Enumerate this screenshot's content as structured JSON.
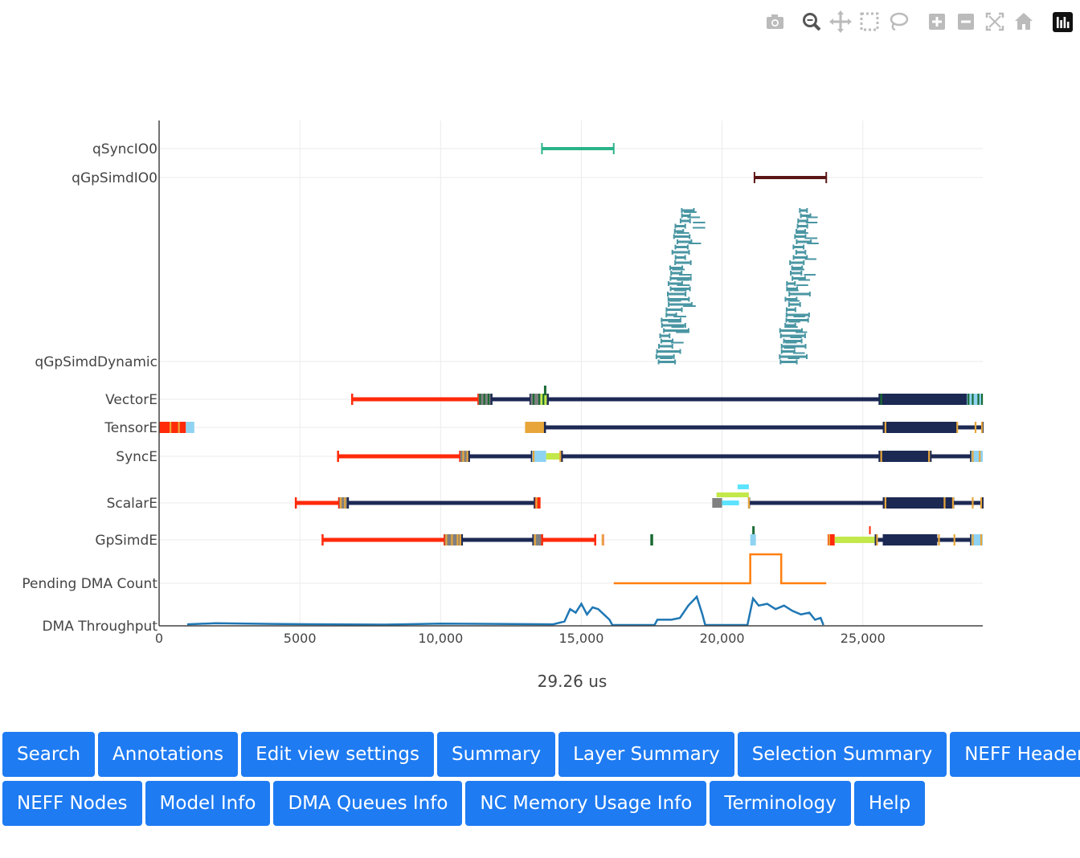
{
  "toolbar": {
    "buttons": [
      {
        "name": "camera-icon"
      },
      {
        "name": "zoom-icon"
      },
      {
        "name": "pan-icon"
      },
      {
        "name": "box-select-icon"
      },
      {
        "name": "lasso-select-icon"
      },
      {
        "name": "zoom-in-icon"
      },
      {
        "name": "zoom-out-icon"
      },
      {
        "name": "autoscale-icon"
      },
      {
        "name": "reset-axes-icon"
      },
      {
        "name": "plotly-logo-icon"
      }
    ]
  },
  "chart_data": {
    "type": "timeline",
    "title": "",
    "xlabel": "29.26 us",
    "xlim": [
      0,
      29260
    ],
    "xticks": [
      0,
      5000,
      10000,
      15000,
      20000,
      25000
    ],
    "xtick_labels": [
      "0",
      "5000",
      "10,000",
      "15,000",
      "20,000",
      "25,000"
    ],
    "rows": [
      "qSyncIO0",
      "qGpSimdIO0",
      "qGpSimdDynamic",
      "VectorE",
      "TensorE",
      "SyncE",
      "ScalarE",
      "GpSimdE",
      "Pending DMA Count",
      "DMA Throughput"
    ],
    "colors": {
      "teal": "#2bb38a",
      "maroon": "#5c1515",
      "dyn": "#4a96a3",
      "red": "#ff2a0a",
      "navy": "#1c2953",
      "lime": "#c3e84a",
      "cyan": "#5ce3ff",
      "lightblue": "#8fd3f2",
      "green": "#1a6b34",
      "orange": "#ff7f0e",
      "blue": "#1f77b4",
      "grey": "#808080",
      "gold": "#e8a63a"
    },
    "intervals": [
      {
        "row": "qSyncIO0",
        "start": 13600,
        "end": 16150,
        "color": "teal",
        "style": "err"
      },
      {
        "row": "qGpSimdIO0",
        "start": 21150,
        "end": 23700,
        "color": "maroon",
        "style": "err"
      },
      {
        "row": "VectorE",
        "start": 6850,
        "end": 11350,
        "color": "red"
      },
      {
        "row": "VectorE",
        "start": 11350,
        "end": 11800,
        "color": "grey",
        "w": 14
      },
      {
        "row": "VectorE",
        "start": 11800,
        "end": 13200,
        "color": "navy"
      },
      {
        "row": "VectorE",
        "start": 13200,
        "end": 13550,
        "color": "grey",
        "w": 14
      },
      {
        "row": "VectorE",
        "start": 13550,
        "end": 13800,
        "color": "lime",
        "w": 14
      },
      {
        "row": "VectorE",
        "start": 13800,
        "end": 25600,
        "color": "navy"
      },
      {
        "row": "VectorE",
        "start": 25600,
        "end": 28700,
        "color": "navy",
        "w": 14
      },
      {
        "row": "VectorE",
        "start": 28700,
        "end": 29260,
        "color": "lightblue",
        "w": 14
      },
      {
        "row": "TensorE",
        "start": 0,
        "end": 950,
        "color": "red",
        "w": 14
      },
      {
        "row": "TensorE",
        "start": 950,
        "end": 1250,
        "color": "lightblue",
        "w": 14
      },
      {
        "row": "TensorE",
        "start": 13000,
        "end": 13700,
        "color": "gold",
        "w": 14
      },
      {
        "row": "TensorE",
        "start": 13700,
        "end": 25750,
        "color": "navy"
      },
      {
        "row": "TensorE",
        "start": 25750,
        "end": 28300,
        "color": "navy",
        "w": 14
      },
      {
        "row": "TensorE",
        "start": 28300,
        "end": 29260,
        "color": "navy"
      },
      {
        "row": "SyncE",
        "start": 6350,
        "end": 10700,
        "color": "red"
      },
      {
        "row": "SyncE",
        "start": 10700,
        "end": 11000,
        "color": "grey",
        "w": 14
      },
      {
        "row": "SyncE",
        "start": 11000,
        "end": 13250,
        "color": "navy"
      },
      {
        "row": "SyncE",
        "start": 13250,
        "end": 13750,
        "color": "lightblue",
        "w": 14
      },
      {
        "row": "SyncE",
        "start": 13750,
        "end": 14300,
        "color": "lime",
        "w": 8
      },
      {
        "row": "SyncE",
        "start": 14300,
        "end": 25600,
        "color": "navy"
      },
      {
        "row": "SyncE",
        "start": 25600,
        "end": 27400,
        "color": "navy",
        "w": 14
      },
      {
        "row": "SyncE",
        "start": 27400,
        "end": 28850,
        "color": "navy"
      },
      {
        "row": "SyncE",
        "start": 28850,
        "end": 29260,
        "color": "lightblue",
        "w": 14
      },
      {
        "row": "ScalarE",
        "start": 4850,
        "end": 6400,
        "color": "red"
      },
      {
        "row": "ScalarE",
        "start": 6400,
        "end": 6700,
        "color": "grey",
        "w": 14
      },
      {
        "row": "ScalarE",
        "start": 6700,
        "end": 13350,
        "color": "navy"
      },
      {
        "row": "ScalarE",
        "start": 13350,
        "end": 13550,
        "color": "red",
        "w": 14
      },
      {
        "row": "ScalarE",
        "start": 19650,
        "end": 20000,
        "color": "grey",
        "w": 12
      },
      {
        "row": "ScalarE",
        "start": 20000,
        "end": 20600,
        "color": "cyan",
        "w": 6,
        "dy": 0
      },
      {
        "row": "ScalarE",
        "start": 19800,
        "end": 20950,
        "color": "lime",
        "w": 6,
        "dy": -10
      },
      {
        "row": "ScalarE",
        "start": 20550,
        "end": 20950,
        "color": "cyan",
        "w": 6,
        "dy": -20
      },
      {
        "row": "ScalarE",
        "start": 20950,
        "end": 25750,
        "color": "navy"
      },
      {
        "row": "ScalarE",
        "start": 25750,
        "end": 28200,
        "color": "navy",
        "w": 14
      },
      {
        "row": "ScalarE",
        "start": 28200,
        "end": 29260,
        "color": "navy"
      },
      {
        "row": "GpSimdE",
        "start": 5800,
        "end": 10150,
        "color": "red"
      },
      {
        "row": "GpSimdE",
        "start": 10150,
        "end": 10750,
        "color": "grey",
        "w": 14
      },
      {
        "row": "GpSimdE",
        "start": 10750,
        "end": 13300,
        "color": "navy"
      },
      {
        "row": "GpSimdE",
        "start": 13300,
        "end": 13600,
        "color": "grey",
        "w": 14
      },
      {
        "row": "GpSimdE",
        "start": 13600,
        "end": 15500,
        "color": "red"
      },
      {
        "row": "GpSimdE",
        "start": 15750,
        "end": 15800,
        "color": "red",
        "w": 14
      },
      {
        "row": "GpSimdE",
        "start": 17450,
        "end": 17550,
        "color": "green",
        "w": 14
      },
      {
        "row": "GpSimdE",
        "start": 21000,
        "end": 21200,
        "color": "lightblue",
        "w": 14
      },
      {
        "row": "GpSimdE",
        "start": 23750,
        "end": 24000,
        "color": "red",
        "w": 14
      },
      {
        "row": "GpSimdE",
        "start": 24000,
        "end": 25450,
        "color": "lime",
        "w": 8
      },
      {
        "row": "GpSimdE",
        "start": 25450,
        "end": 25750,
        "color": "navy"
      },
      {
        "row": "GpSimdE",
        "start": 25750,
        "end": 27600,
        "color": "navy",
        "w": 14
      },
      {
        "row": "GpSimdE",
        "start": 27600,
        "end": 28850,
        "color": "navy"
      },
      {
        "row": "GpSimdE",
        "start": 28850,
        "end": 29260,
        "color": "lightblue",
        "w": 14
      }
    ],
    "dynamic_clusters": [
      {
        "start": 17600,
        "end": 19400
      },
      {
        "start": 21900,
        "end": 23550
      }
    ],
    "pending_dma": {
      "x": [
        16150,
        21000,
        21000,
        22100,
        22100,
        23700
      ],
      "y": [
        0,
        0,
        1,
        1,
        0,
        0
      ],
      "color": "orange"
    },
    "dma_throughput": {
      "x": [
        1000,
        2000,
        4000,
        6000,
        8000,
        10000,
        12000,
        14000,
        14400,
        14600,
        14800,
        15000,
        15200,
        15400,
        15600,
        15800,
        16000,
        16100,
        17600,
        17700,
        18200,
        18500,
        18800,
        19100,
        19300,
        19400,
        20900,
        21100,
        21300,
        21600,
        21900,
        22200,
        22500,
        22800,
        23100,
        23300,
        23500,
        23600
      ],
      "y": [
        0.02,
        0.05,
        0.03,
        0.02,
        0.01,
        0.04,
        0.03,
        0.02,
        0.1,
        0.45,
        0.35,
        0.6,
        0.3,
        0.5,
        0.45,
        0.3,
        0.15,
        0.0,
        0.0,
        0.15,
        0.15,
        0.2,
        0.55,
        0.8,
        0.3,
        0.0,
        0.0,
        0.75,
        0.55,
        0.6,
        0.45,
        0.55,
        0.4,
        0.3,
        0.35,
        0.15,
        0.2,
        0.0
      ],
      "color": "blue"
    }
  },
  "unit_label": "29.26 us",
  "buttons": {
    "row1": [
      "Search",
      "Annotations",
      "Edit view settings",
      "Summary",
      "Layer Summary",
      "Selection Summary",
      "NEFF Header"
    ],
    "row2": [
      "NEFF Nodes",
      "Model Info",
      "DMA Queues Info",
      "NC Memory Usage Info",
      "Terminology",
      "Help"
    ]
  }
}
